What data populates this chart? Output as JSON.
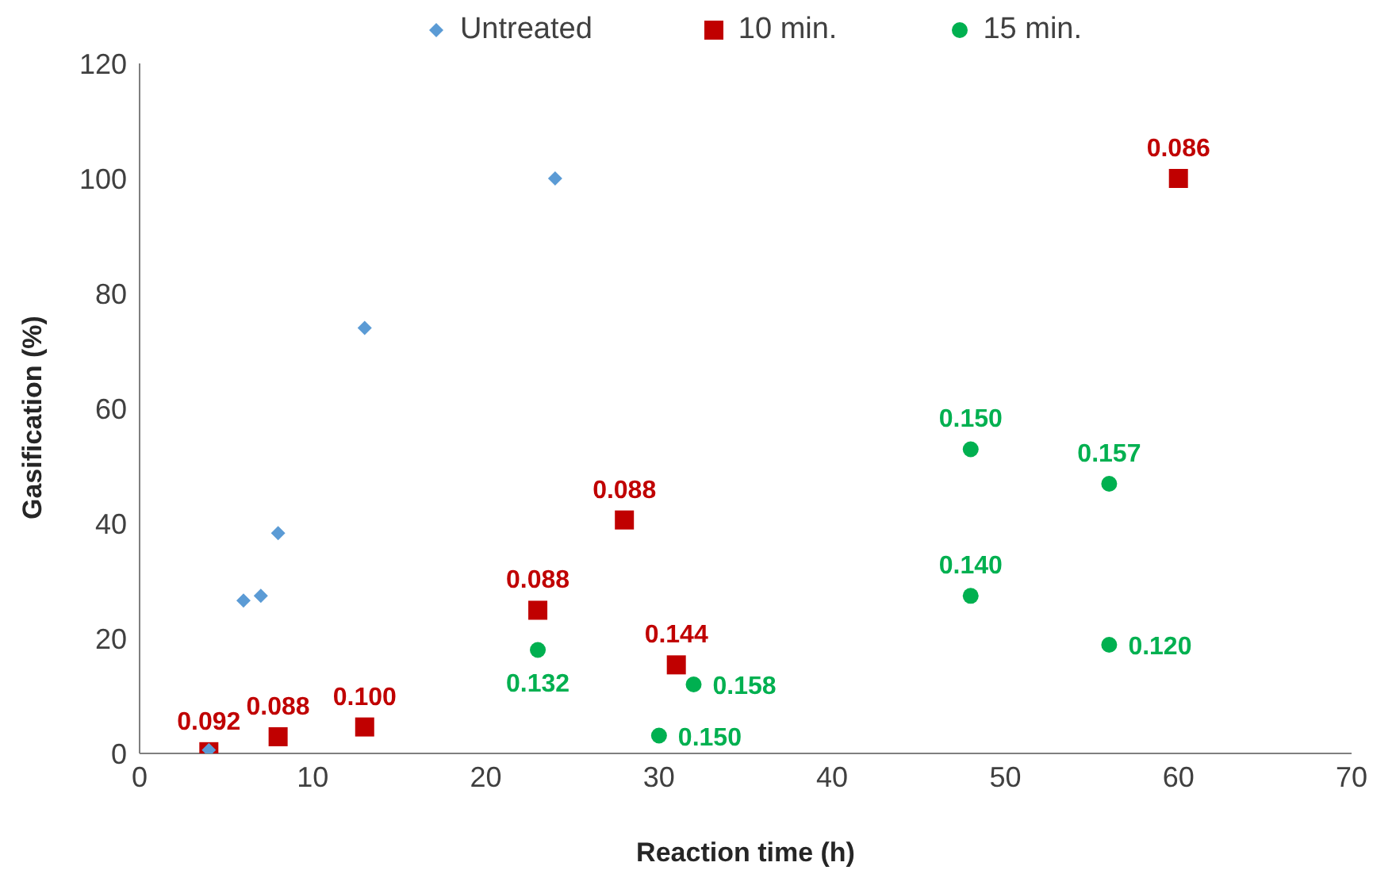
{
  "chart_data": {
    "type": "scatter",
    "xlabel": "Reaction time (h)",
    "ylabel": "Gasification (%)",
    "xlim": [
      0,
      70
    ],
    "ylim": [
      0,
      120
    ],
    "xticks": [
      0,
      10,
      20,
      30,
      40,
      50,
      60,
      70
    ],
    "yticks": [
      0,
      20,
      40,
      60,
      80,
      100,
      120
    ],
    "grid": false,
    "legend": "top",
    "series": [
      {
        "name": "Untreated",
        "color": "#5b9bd5",
        "marker": "diamond",
        "x": [
          4,
          6,
          7,
          8,
          13,
          24
        ],
        "values": [
          0.6,
          26.6,
          27.4,
          38.3,
          74,
          100
        ]
      },
      {
        "name": "10 min.",
        "color": "#c00000",
        "marker": "square",
        "x": [
          4,
          8,
          13,
          23,
          28,
          31,
          60
        ],
        "values": [
          0.3,
          2.9,
          4.6,
          24.9,
          40.6,
          15.4,
          100
        ]
      },
      {
        "name": "15 min.",
        "color": "#00b050",
        "marker": "circle",
        "x": [
          23,
          30,
          32,
          48,
          48,
          56,
          56
        ],
        "values": [
          18,
          3.1,
          12,
          52.9,
          27.4,
          46.9,
          18.9
        ]
      }
    ],
    "annotations": [
      {
        "text": "0.092",
        "x": 4,
        "y": 0.3
      },
      {
        "text": "0.088",
        "x": 8,
        "y": 2.9
      },
      {
        "text": "0.100",
        "x": 13,
        "y": 4.6
      },
      {
        "text": "0.088",
        "x": 23,
        "y": 24.9
      },
      {
        "text": "0.088",
        "x": 28,
        "y": 40.6
      },
      {
        "text": "0.144",
        "x": 31,
        "y": 15.4
      },
      {
        "text": "0.086",
        "x": 60,
        "y": 100
      },
      {
        "text": "0.132",
        "x": 23,
        "y": 18
      },
      {
        "text": "0.150",
        "x": 30,
        "y": 3.1
      },
      {
        "text": "0.158",
        "x": 32,
        "y": 12
      },
      {
        "text": "0.150",
        "x": 48,
        "y": 52.9
      },
      {
        "text": "0.140",
        "x": 48,
        "y": 27.4
      },
      {
        "text": "0.157",
        "x": 56,
        "y": 46.9
      },
      {
        "text": "0.120",
        "x": 56,
        "y": 18.9
      }
    ]
  }
}
